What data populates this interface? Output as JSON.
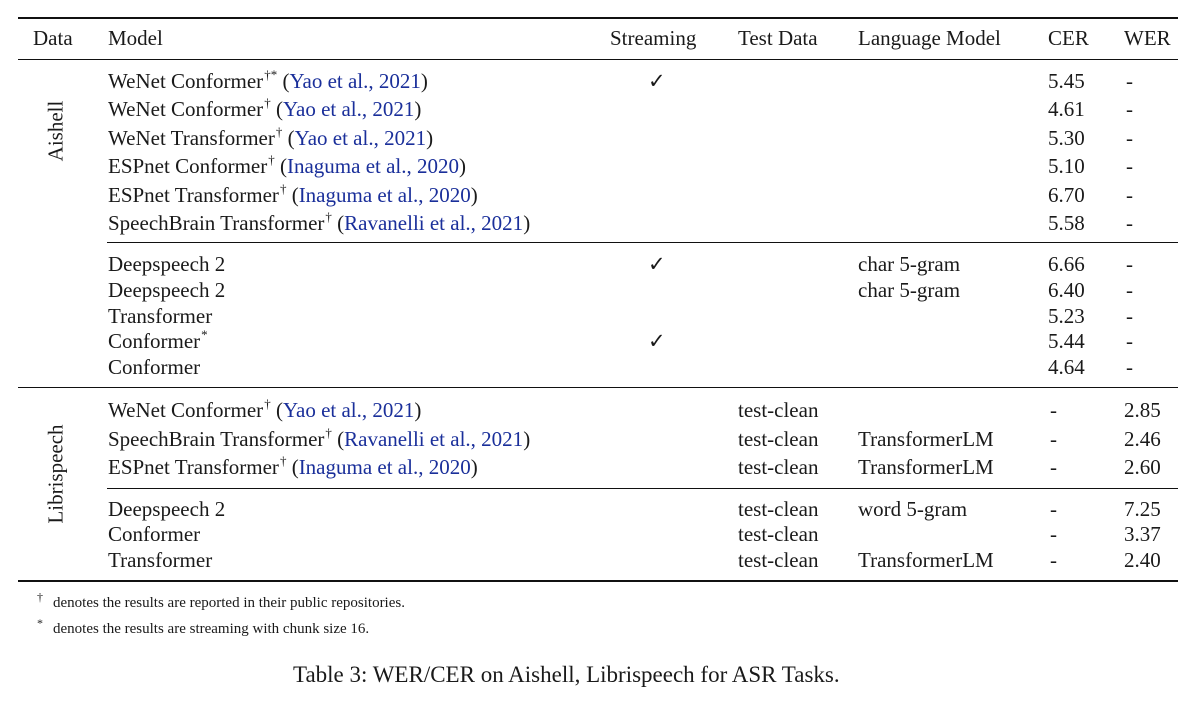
{
  "columns": {
    "data": "Data",
    "model": "Model",
    "streaming": "Streaming",
    "test_data": "Test Data",
    "lm": "Language Model",
    "cer": "CER",
    "wer": "WER"
  },
  "groups": {
    "aishell": "Aishell",
    "librispeech": "Librispeech"
  },
  "rows": [
    {
      "model": "WeNet Conformer",
      "sup": "†*",
      "cite": "Yao et al., 2021",
      "streaming": "✓",
      "test": "",
      "lm": "",
      "cer": "5.45",
      "wer": "-"
    },
    {
      "model": "WeNet Conformer",
      "sup": "†",
      "cite": "Yao et al., 2021",
      "streaming": "",
      "test": "",
      "lm": "",
      "cer": "4.61",
      "wer": "-"
    },
    {
      "model": "WeNet Transformer",
      "sup": "†",
      "cite": "Yao et al., 2021",
      "streaming": "",
      "test": "",
      "lm": "",
      "cer": "5.30",
      "wer": "-"
    },
    {
      "model": "ESPnet Conformer",
      "sup": "†",
      "cite": "Inaguma et al., 2020",
      "streaming": "",
      "test": "",
      "lm": "",
      "cer": "5.10",
      "wer": "-"
    },
    {
      "model": "ESPnet Transformer",
      "sup": "†",
      "cite": "Inaguma et al., 2020",
      "streaming": "",
      "test": "",
      "lm": "",
      "cer": "6.70",
      "wer": "-"
    },
    {
      "model": "SpeechBrain Transformer",
      "sup": "†",
      "cite": "Ravanelli et al., 2021",
      "streaming": "",
      "test": "",
      "lm": "",
      "cer": "5.58",
      "wer": "-"
    },
    {
      "model": "Deepspeech 2",
      "sup": "",
      "cite": "",
      "streaming": "✓",
      "test": "",
      "lm": "char 5-gram",
      "cer": "6.66",
      "wer": "-"
    },
    {
      "model": "Deepspeech 2",
      "sup": "",
      "cite": "",
      "streaming": "",
      "test": "",
      "lm": "char 5-gram",
      "cer": "6.40",
      "wer": "-"
    },
    {
      "model": "Transformer",
      "sup": "",
      "cite": "",
      "streaming": "",
      "test": "",
      "lm": "",
      "cer": "5.23",
      "wer": "-"
    },
    {
      "model": "Conformer",
      "sup": "*",
      "cite": "",
      "streaming": "✓",
      "test": "",
      "lm": "",
      "cer": "5.44",
      "wer": "-"
    },
    {
      "model": "Conformer",
      "sup": "",
      "cite": "",
      "streaming": "",
      "test": "",
      "lm": "",
      "cer": "4.64",
      "wer": "-"
    },
    {
      "model": "WeNet Conformer",
      "sup": "†",
      "cite": "Yao et al., 2021",
      "streaming": "",
      "test": "test-clean",
      "lm": "",
      "cer": "-",
      "wer": "2.85"
    },
    {
      "model": "SpeechBrain Transformer",
      "sup": "†",
      "cite": "Ravanelli et al., 2021",
      "streaming": "",
      "test": "test-clean",
      "lm": "TransformerLM",
      "cer": "-",
      "wer": "2.46"
    },
    {
      "model": "ESPnet Transformer",
      "sup": "†",
      "cite": "Inaguma et al., 2020",
      "streaming": "",
      "test": "test-clean",
      "lm": "TransformerLM",
      "cer": "-",
      "wer": "2.60"
    },
    {
      "model": "Deepspeech 2",
      "sup": "",
      "cite": "",
      "streaming": "",
      "test": "test-clean",
      "lm": "word 5-gram",
      "cer": "-",
      "wer": "7.25"
    },
    {
      "model": "Conformer",
      "sup": "",
      "cite": "",
      "streaming": "",
      "test": "test-clean",
      "lm": "",
      "cer": "-",
      "wer": "3.37"
    },
    {
      "model": "Transformer",
      "sup": "",
      "cite": "",
      "streaming": "",
      "test": "test-clean",
      "lm": "TransformerLM",
      "cer": "-",
      "wer": "2.40"
    }
  ],
  "footnotes": [
    {
      "mark": "†",
      "text": "denotes the results are reported in their public repositories."
    },
    {
      "mark": "*",
      "text": "denotes the results are streaming with chunk size 16."
    }
  ],
  "caption": "Table 3: WER/CER on Aishell, Librispeech for ASR Tasks."
}
